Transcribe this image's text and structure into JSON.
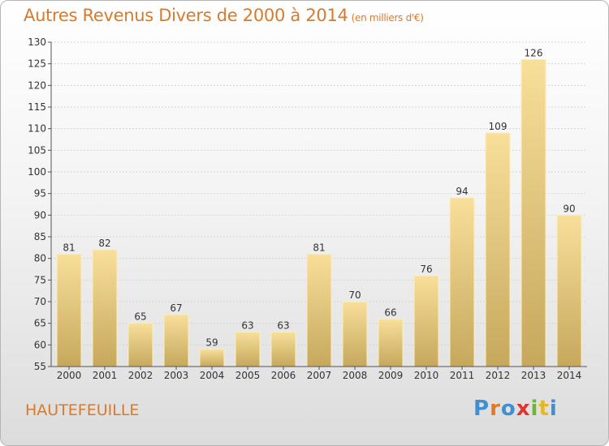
{
  "header": {
    "title": "Autres Revenus Divers de 2000 à 2014",
    "unit": "(en milliers d'€)"
  },
  "footer": {
    "town": "HAUTEFEUILLE",
    "logo": "Proxiti"
  },
  "colors": {
    "title": "#d97a2a",
    "bar_light": "#f7dd97",
    "bar_dark": "#c8aa5f"
  },
  "chart_data": {
    "type": "bar",
    "title": "Autres Revenus Divers de 2000 à 2014",
    "subtitle": "(en milliers d'€)",
    "categories": [
      "2000",
      "2001",
      "2002",
      "2003",
      "2004",
      "2005",
      "2006",
      "2007",
      "2008",
      "2009",
      "2010",
      "2011",
      "2012",
      "2013",
      "2014"
    ],
    "values": [
      81,
      82,
      65,
      67,
      59,
      63,
      63,
      81,
      70,
      66,
      76,
      94,
      109,
      126,
      90
    ],
    "ylim": [
      55,
      130
    ],
    "yticks": [
      55,
      60,
      65,
      70,
      75,
      80,
      85,
      90,
      95,
      100,
      105,
      110,
      115,
      120,
      125,
      130
    ],
    "grid": true,
    "data_labels": true
  }
}
